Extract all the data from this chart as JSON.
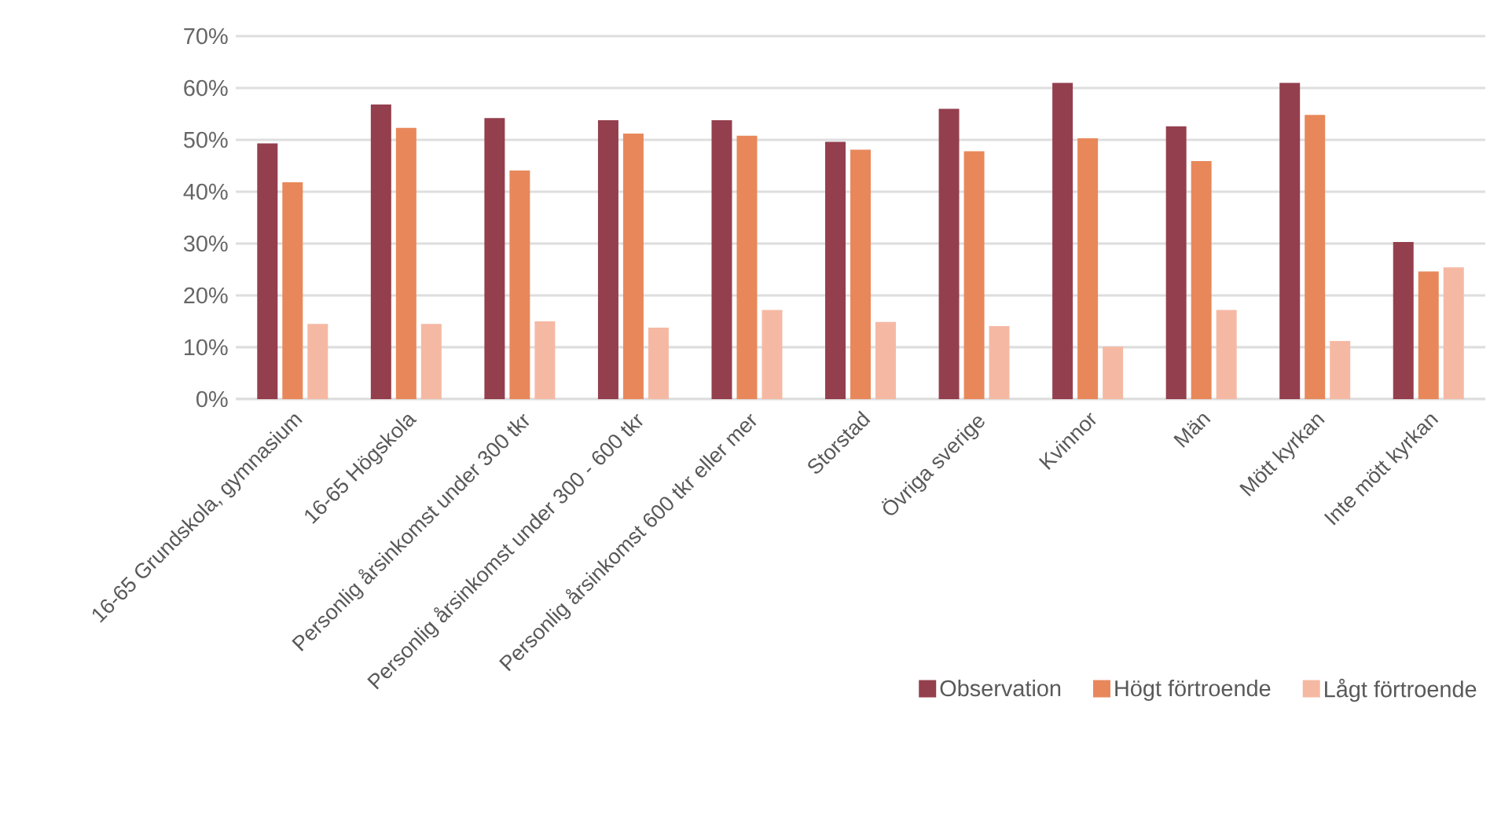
{
  "chart_data": {
    "type": "bar",
    "categories": [
      "16-65 Grundskola, gymnasium",
      "16-65 Högskola",
      "Personlig årsinkomst under 300 tkr",
      "Personlig årsinkomst under 300 - 600 tkr",
      "Personlig årsinkomst 600 tkr eller mer",
      "Storstad",
      "Övriga sverige",
      "Kvinnor",
      "Män",
      "Mött kyrkan",
      "Inte mött kyrkan"
    ],
    "series": [
      {
        "name": "Observation",
        "color": "#943f4e",
        "values": [
          49.3,
          56.8,
          54.2,
          53.8,
          53.8,
          49.6,
          56.0,
          61.0,
          52.6,
          61.0,
          30.3
        ]
      },
      {
        "name": "Högt förtroende",
        "color": "#e8885a",
        "values": [
          41.8,
          52.3,
          44.1,
          51.2,
          50.8,
          48.1,
          47.8,
          50.3,
          45.9,
          54.8,
          24.6
        ]
      },
      {
        "name": "Lågt förtroende",
        "color": "#f5b9a3",
        "values": [
          14.5,
          14.5,
          15.0,
          13.8,
          17.2,
          14.9,
          14.1,
          10.1,
          17.2,
          11.2,
          25.4
        ]
      }
    ],
    "ylim": [
      0,
      70
    ],
    "yticks": [
      {
        "value": 0,
        "label": "0%"
      },
      {
        "value": 10,
        "label": "10%"
      },
      {
        "value": 20,
        "label": "20%"
      },
      {
        "value": 30,
        "label": "30%"
      },
      {
        "value": 40,
        "label": "40%"
      },
      {
        "value": 50,
        "label": "50%"
      },
      {
        "value": 60,
        "label": "60%"
      },
      {
        "value": 70,
        "label": "70%"
      }
    ],
    "grid": "y",
    "legend": "bottom right"
  }
}
